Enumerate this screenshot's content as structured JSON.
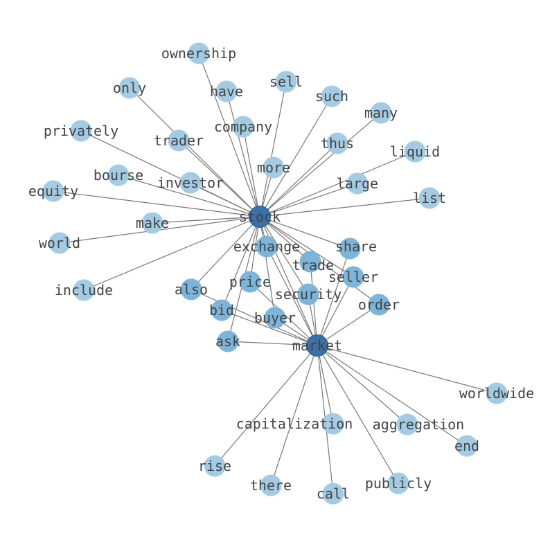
{
  "graph": {
    "hubs": [
      "stock",
      "market"
    ],
    "colors": {
      "edge": "#777777",
      "leaf": "#a3cbe3",
      "shared": "#7db5d9",
      "hub": "#3a70a6",
      "label": "#444444"
    },
    "nodes": [
      {
        "id": "stock",
        "label": "stock",
        "group": "hub"
      },
      {
        "id": "market",
        "label": "market",
        "group": "hub"
      },
      {
        "id": "ownership",
        "label": "ownership",
        "group": "leaf"
      },
      {
        "id": "only",
        "label": "only",
        "group": "leaf"
      },
      {
        "id": "have",
        "label": "have",
        "group": "leaf"
      },
      {
        "id": "sell",
        "label": "sell",
        "group": "leaf"
      },
      {
        "id": "such",
        "label": "such",
        "group": "leaf"
      },
      {
        "id": "many",
        "label": "many",
        "group": "leaf"
      },
      {
        "id": "privately",
        "label": "privately",
        "group": "leaf"
      },
      {
        "id": "trader",
        "label": "trader",
        "group": "leaf"
      },
      {
        "id": "company",
        "label": "company",
        "group": "leaf"
      },
      {
        "id": "thus",
        "label": "thus",
        "group": "leaf"
      },
      {
        "id": "liquid",
        "label": "liquid",
        "group": "leaf"
      },
      {
        "id": "more",
        "label": "more",
        "group": "leaf"
      },
      {
        "id": "bourse",
        "label": "bourse",
        "group": "leaf"
      },
      {
        "id": "investor",
        "label": "investor",
        "group": "leaf"
      },
      {
        "id": "large",
        "label": "large",
        "group": "leaf"
      },
      {
        "id": "equity",
        "label": "equity",
        "group": "leaf"
      },
      {
        "id": "list",
        "label": "list",
        "group": "leaf"
      },
      {
        "id": "make",
        "label": "make",
        "group": "leaf"
      },
      {
        "id": "world",
        "label": "world",
        "group": "leaf"
      },
      {
        "id": "include",
        "label": "include",
        "group": "leaf"
      },
      {
        "id": "exchange",
        "label": "exchange",
        "group": "shared"
      },
      {
        "id": "share",
        "label": "share",
        "group": "shared"
      },
      {
        "id": "trade",
        "label": "trade",
        "group": "shared"
      },
      {
        "id": "also",
        "label": "also",
        "group": "shared"
      },
      {
        "id": "price",
        "label": "price",
        "group": "shared"
      },
      {
        "id": "seller",
        "label": "seller",
        "group": "shared"
      },
      {
        "id": "security",
        "label": "security",
        "group": "shared"
      },
      {
        "id": "order",
        "label": "order",
        "group": "shared"
      },
      {
        "id": "bid",
        "label": "bid",
        "group": "shared"
      },
      {
        "id": "buyer",
        "label": "buyer",
        "group": "shared"
      },
      {
        "id": "ask",
        "label": "ask",
        "group": "shared"
      },
      {
        "id": "worldwide",
        "label": "worldwide",
        "group": "leaf"
      },
      {
        "id": "capitalization",
        "label": "capitalization",
        "group": "leaf"
      },
      {
        "id": "aggregation",
        "label": "aggregation",
        "group": "leaf"
      },
      {
        "id": "end",
        "label": "end",
        "group": "leaf"
      },
      {
        "id": "rise",
        "label": "rise",
        "group": "leaf"
      },
      {
        "id": "there",
        "label": "there",
        "group": "leaf"
      },
      {
        "id": "call",
        "label": "call",
        "group": "leaf"
      },
      {
        "id": "publicly",
        "label": "publicly",
        "group": "leaf"
      }
    ],
    "edges": [
      [
        "stock",
        "market"
      ],
      [
        "stock",
        "ownership"
      ],
      [
        "stock",
        "only"
      ],
      [
        "stock",
        "have"
      ],
      [
        "stock",
        "sell"
      ],
      [
        "stock",
        "such"
      ],
      [
        "stock",
        "many"
      ],
      [
        "stock",
        "privately"
      ],
      [
        "stock",
        "trader"
      ],
      [
        "stock",
        "company"
      ],
      [
        "stock",
        "thus"
      ],
      [
        "stock",
        "liquid"
      ],
      [
        "stock",
        "more"
      ],
      [
        "stock",
        "bourse"
      ],
      [
        "stock",
        "investor"
      ],
      [
        "stock",
        "large"
      ],
      [
        "stock",
        "equity"
      ],
      [
        "stock",
        "list"
      ],
      [
        "stock",
        "make"
      ],
      [
        "stock",
        "world"
      ],
      [
        "stock",
        "include"
      ],
      [
        "stock",
        "exchange"
      ],
      [
        "stock",
        "share"
      ],
      [
        "stock",
        "trade"
      ],
      [
        "stock",
        "also"
      ],
      [
        "stock",
        "price"
      ],
      [
        "stock",
        "seller"
      ],
      [
        "stock",
        "security"
      ],
      [
        "stock",
        "order"
      ],
      [
        "stock",
        "bid"
      ],
      [
        "stock",
        "buyer"
      ],
      [
        "stock",
        "ask"
      ],
      [
        "market",
        "exchange"
      ],
      [
        "market",
        "share"
      ],
      [
        "market",
        "trade"
      ],
      [
        "market",
        "also"
      ],
      [
        "market",
        "price"
      ],
      [
        "market",
        "seller"
      ],
      [
        "market",
        "security"
      ],
      [
        "market",
        "order"
      ],
      [
        "market",
        "bid"
      ],
      [
        "market",
        "buyer"
      ],
      [
        "market",
        "ask"
      ],
      [
        "market",
        "worldwide"
      ],
      [
        "market",
        "capitalization"
      ],
      [
        "market",
        "aggregation"
      ],
      [
        "market",
        "end"
      ],
      [
        "market",
        "rise"
      ],
      [
        "market",
        "there"
      ],
      [
        "market",
        "call"
      ],
      [
        "market",
        "publicly"
      ]
    ]
  }
}
